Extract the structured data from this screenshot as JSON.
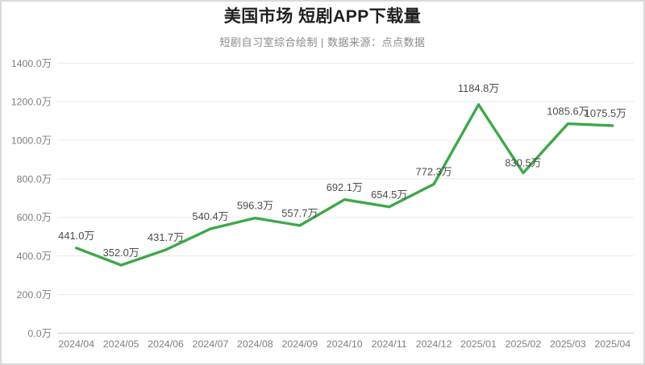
{
  "header": {
    "title": "美国市场 短剧APP下载量",
    "subtitle": "短剧自习室综合绘制 | 数据来源：点点数据"
  },
  "chart_data": {
    "type": "line",
    "title": "美国市场 短剧APP下载量",
    "subtitle": "短剧自习室综合绘制 | 数据来源：点点数据",
    "categories": [
      "2024/04",
      "2024/05",
      "2024/06",
      "2024/07",
      "2024/08",
      "2024/09",
      "2024/10",
      "2024/11",
      "2024/12",
      "2025/01",
      "2025/02",
      "2025/03",
      "2025/04"
    ],
    "values": [
      441.0,
      352.0,
      431.7,
      540.4,
      596.3,
      557.7,
      692.1,
      654.5,
      772.3,
      1184.8,
      830.5,
      1085.6,
      1075.5
    ],
    "data_labels": [
      "441.0万",
      "352.0万",
      "431.7万",
      "540.4万",
      "596.3万",
      "557.7万",
      "692.1万",
      "654.5万",
      "772.3万",
      "1184.8万",
      "830.5万",
      "1085.6万",
      "1075.5万"
    ],
    "unit": "万",
    "xlabel": "",
    "ylabel": "",
    "ylim": [
      0,
      1400
    ],
    "y_ticks": [
      {
        "label": "0.0万",
        "value": 0
      },
      {
        "label": "200.0万",
        "value": 200
      },
      {
        "label": "400.0万",
        "value": 400
      },
      {
        "label": "600.0万",
        "value": 600
      },
      {
        "label": "800.0万",
        "value": 800
      },
      {
        "label": "1000.0万",
        "value": 1000
      },
      {
        "label": "1200.0万",
        "value": 1200
      },
      {
        "label": "1400.0万",
        "value": 1400
      }
    ],
    "grid": true,
    "legend": false,
    "line_color": "#3ea84a",
    "grid_color": "#eaeaea",
    "axis_line_color": "#cccccc",
    "tick_label_color": "#7f7f7f",
    "data_label_color": "#4d4d4d",
    "label_dx": [
      0,
      0,
      0,
      0,
      0,
      0,
      0,
      0,
      0,
      0,
      0,
      0,
      -9
    ],
    "label_dy": [
      0,
      0,
      0,
      0,
      0,
      0,
      0,
      0,
      0,
      -5,
      3,
      0,
      0
    ]
  }
}
